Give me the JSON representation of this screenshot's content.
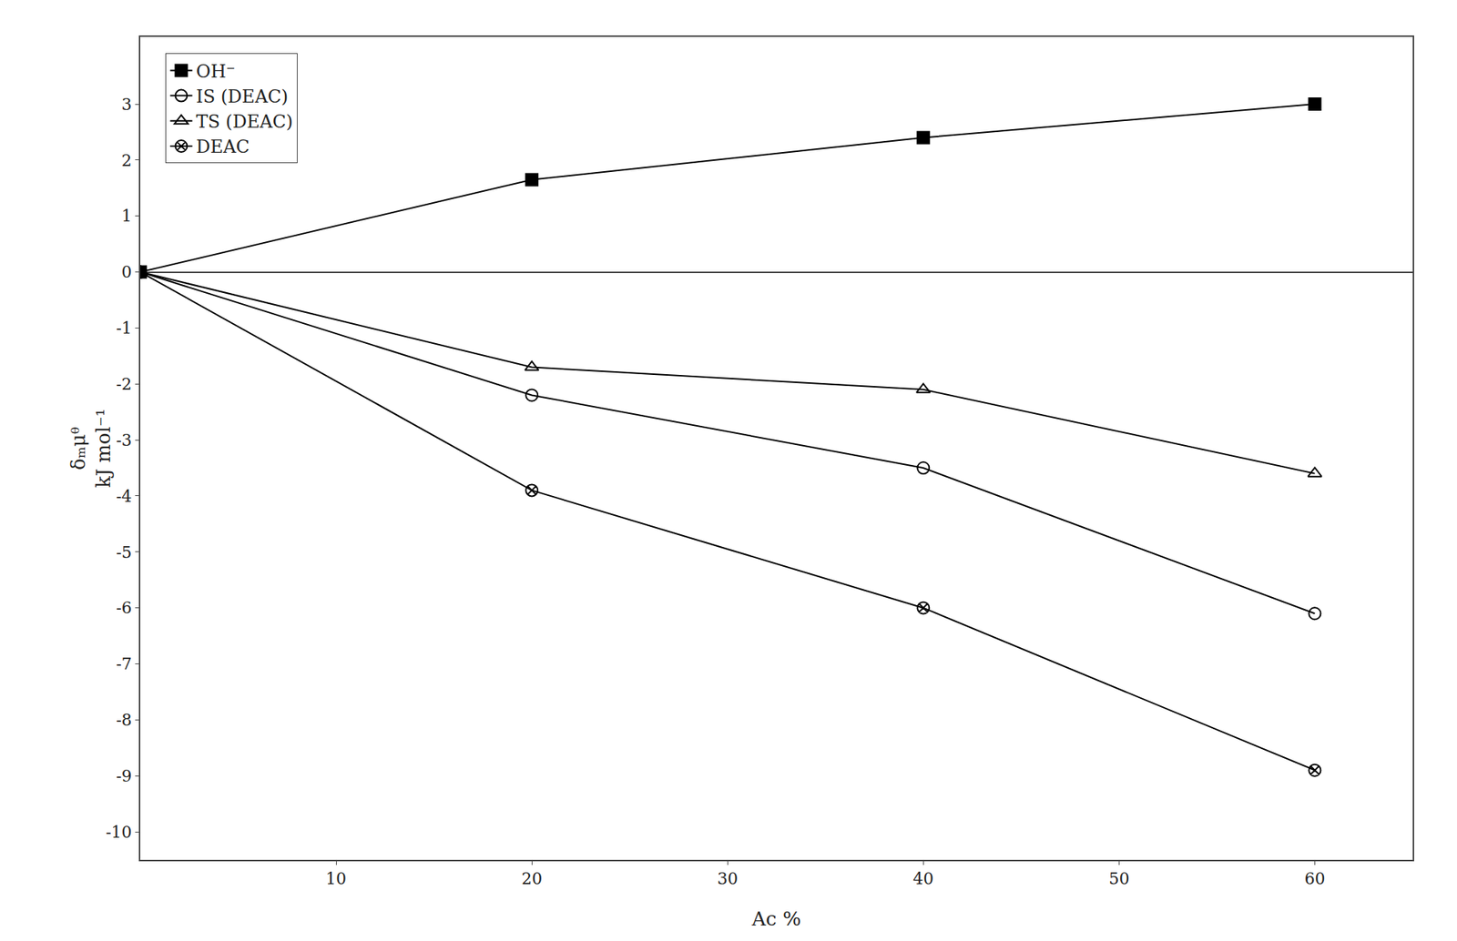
{
  "chart_data": {
    "type": "line",
    "x_label": "Ac %",
    "y_label": "δₘμᶿ\nkJ mol⁻¹",
    "x": [
      0,
      20,
      40,
      60
    ],
    "series": [
      {
        "name": "OH⁻",
        "color": "black",
        "marker": "square",
        "values": [
          0,
          1.65,
          2.4,
          3.0
        ]
      },
      {
        "name": "IS (DEAC)",
        "color": "black",
        "marker": "circle-open",
        "values": [
          0,
          -2.2,
          -3.5,
          -6.1
        ]
      },
      {
        "name": "TS (DEAC)",
        "color": "black",
        "marker": "triangle-up-open",
        "values": [
          0,
          -1.7,
          -2.1,
          -3.6
        ]
      },
      {
        "name": "DEAC",
        "color": "black",
        "marker": "circle-x-open",
        "values": [
          0,
          -3.9,
          -6.0,
          -8.9
        ]
      }
    ],
    "xlim": [
      0,
      65
    ],
    "ylim": [
      -10.5,
      4.2
    ],
    "xticks": [
      10,
      20,
      30,
      40,
      50,
      60
    ],
    "yticks": [
      -10,
      -9,
      -8,
      -7,
      -6,
      -5,
      -4,
      -3,
      -2,
      -1,
      0,
      1,
      2,
      3
    ],
    "grid": false,
    "legend": "upper left"
  }
}
